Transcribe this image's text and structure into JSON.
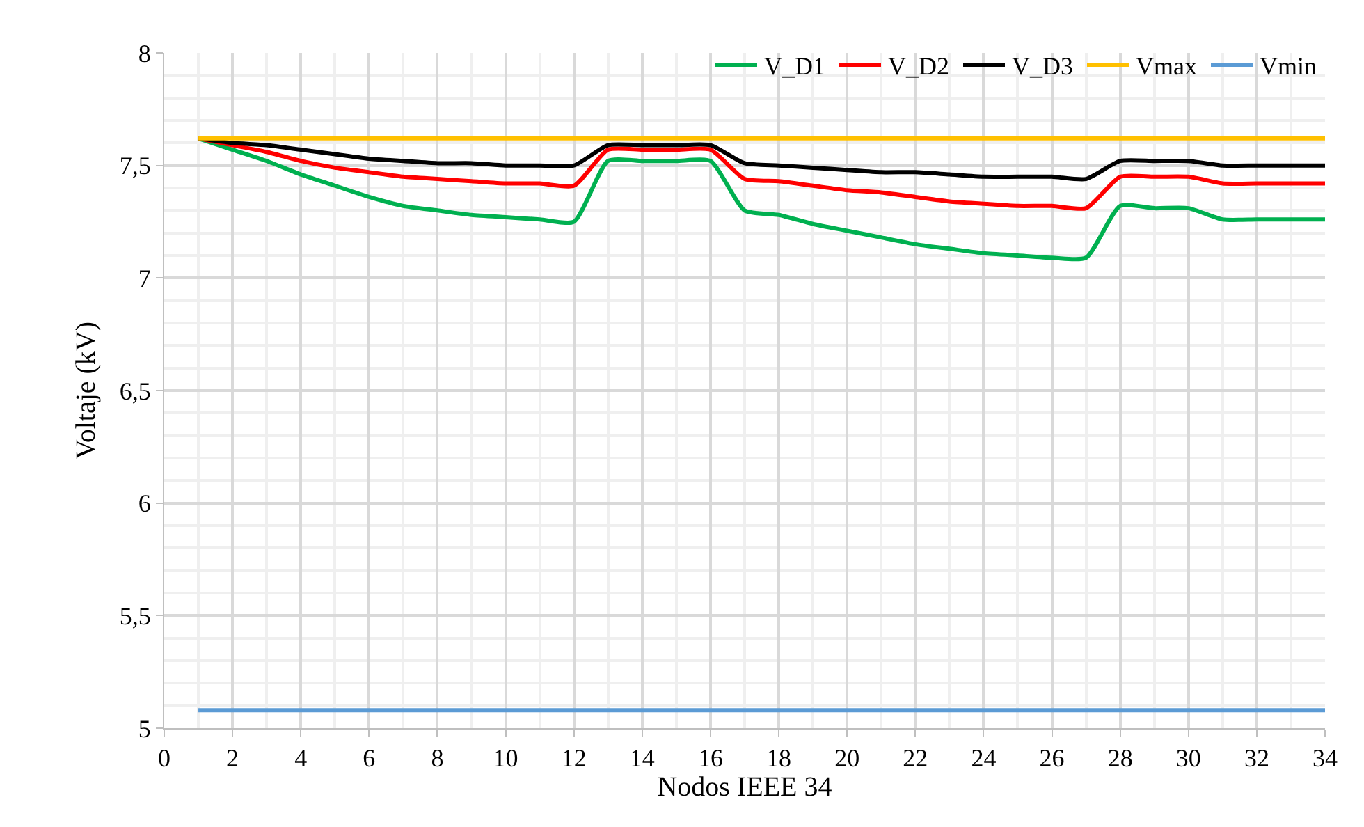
{
  "chart_data": {
    "type": "line",
    "xlabel": "Nodos IEEE 34",
    "ylabel": "Voltaje (kV)",
    "x": [
      1,
      2,
      3,
      4,
      5,
      6,
      7,
      8,
      9,
      10,
      11,
      12,
      13,
      14,
      15,
      16,
      17,
      18,
      19,
      20,
      21,
      22,
      23,
      24,
      25,
      26,
      27,
      28,
      29,
      30,
      31,
      32,
      33,
      34
    ],
    "series": [
      {
        "name": "V_D1",
        "color": "#00b050",
        "values": [
          7.62,
          7.57,
          7.52,
          7.46,
          7.41,
          7.36,
          7.32,
          7.3,
          7.28,
          7.27,
          7.26,
          7.25,
          7.52,
          7.52,
          7.52,
          7.52,
          7.3,
          7.28,
          7.24,
          7.21,
          7.18,
          7.15,
          7.13,
          7.11,
          7.1,
          7.09,
          7.09,
          7.32,
          7.31,
          7.31,
          7.26,
          7.26,
          7.26,
          7.26
        ]
      },
      {
        "name": "V_D2",
        "color": "#ff0000",
        "values": [
          7.62,
          7.59,
          7.56,
          7.52,
          7.49,
          7.47,
          7.45,
          7.44,
          7.43,
          7.42,
          7.42,
          7.41,
          7.57,
          7.57,
          7.57,
          7.57,
          7.44,
          7.43,
          7.41,
          7.39,
          7.38,
          7.36,
          7.34,
          7.33,
          7.32,
          7.32,
          7.31,
          7.45,
          7.45,
          7.45,
          7.42,
          7.42,
          7.42,
          7.42
        ]
      },
      {
        "name": "V_D3",
        "color": "#000000",
        "values": [
          7.62,
          7.6,
          7.59,
          7.57,
          7.55,
          7.53,
          7.52,
          7.51,
          7.51,
          7.5,
          7.5,
          7.5,
          7.59,
          7.59,
          7.59,
          7.59,
          7.51,
          7.5,
          7.49,
          7.48,
          7.47,
          7.47,
          7.46,
          7.45,
          7.45,
          7.45,
          7.44,
          7.52,
          7.52,
          7.52,
          7.5,
          7.5,
          7.5,
          7.5
        ]
      },
      {
        "name": "Vmax",
        "color": "#ffc000",
        "values": [
          7.62,
          7.62,
          7.62,
          7.62,
          7.62,
          7.62,
          7.62,
          7.62,
          7.62,
          7.62,
          7.62,
          7.62,
          7.62,
          7.62,
          7.62,
          7.62,
          7.62,
          7.62,
          7.62,
          7.62,
          7.62,
          7.62,
          7.62,
          7.62,
          7.62,
          7.62,
          7.62,
          7.62,
          7.62,
          7.62,
          7.62,
          7.62,
          7.62,
          7.62
        ]
      },
      {
        "name": "Vmin",
        "color": "#5b9bd5",
        "values": [
          5.08,
          5.08,
          5.08,
          5.08,
          5.08,
          5.08,
          5.08,
          5.08,
          5.08,
          5.08,
          5.08,
          5.08,
          5.08,
          5.08,
          5.08,
          5.08,
          5.08,
          5.08,
          5.08,
          5.08,
          5.08,
          5.08,
          5.08,
          5.08,
          5.08,
          5.08,
          5.08,
          5.08,
          5.08,
          5.08,
          5.08,
          5.08,
          5.08,
          5.08
        ]
      }
    ],
    "xlim": [
      0,
      34
    ],
    "xticks": [
      0,
      2,
      4,
      6,
      8,
      10,
      12,
      14,
      16,
      18,
      20,
      22,
      24,
      26,
      28,
      30,
      32,
      34
    ],
    "ylim": [
      5,
      8
    ],
    "yticks": [
      5,
      {
        "value": 5.5,
        "label": "5,5"
      },
      6,
      {
        "value": 6.5,
        "label": "6,5"
      },
      7,
      {
        "value": 7.5,
        "label": "7,5"
      },
      8
    ],
    "grid": true,
    "legend": "top right",
    "marker": "none",
    "line_style": "solid"
  }
}
